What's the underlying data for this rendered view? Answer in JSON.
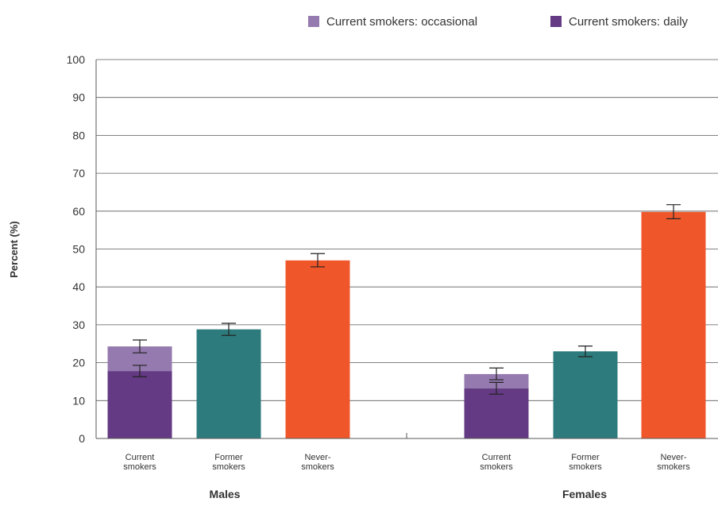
{
  "chart_data": {
    "type": "bar",
    "stacked": true,
    "ylabel": "Percent (%)",
    "ylim": [
      0,
      100
    ],
    "yticks": [
      0,
      10,
      20,
      30,
      40,
      50,
      60,
      70,
      80,
      90,
      100
    ],
    "grid": true,
    "legend_position": "top-right",
    "legend": [
      {
        "label": "Current smokers: occasional",
        "color": "#957aaf"
      },
      {
        "label": "Current smokers: daily",
        "color": "#633a83"
      }
    ],
    "groups": [
      {
        "name": "Males",
        "bars": [
          {
            "label_lines": [
              "Current",
              "smokers"
            ],
            "segments": [
              {
                "series": "daily",
                "value": 17.8,
                "color": "#633a83",
                "error": [
                  16.3,
                  19.3
                ]
              },
              {
                "series": "occasional",
                "value": 6.5,
                "color": "#957aaf",
                "error": [
                  22.6,
                  26.0
                ]
              }
            ]
          },
          {
            "label_lines": [
              "Former",
              "smokers"
            ],
            "segments": [
              {
                "series": "former",
                "value": 28.8,
                "color": "#2e7b7e",
                "error": [
                  27.2,
                  30.4
                ]
              }
            ]
          },
          {
            "label_lines": [
              "Never-",
              "smokers"
            ],
            "segments": [
              {
                "series": "never",
                "value": 47.0,
                "color": "#ef572b",
                "error": [
                  45.3,
                  48.8
                ]
              }
            ]
          }
        ]
      },
      {
        "name": "Females",
        "bars": [
          {
            "label_lines": [
              "Current",
              "smokers"
            ],
            "segments": [
              {
                "series": "daily",
                "value": 13.2,
                "color": "#633a83",
                "error": [
                  11.7,
                  14.8
                ]
              },
              {
                "series": "occasional",
                "value": 3.8,
                "color": "#957aaf",
                "error": [
                  15.5,
                  18.6
                ]
              }
            ]
          },
          {
            "label_lines": [
              "Former",
              "smokers"
            ],
            "segments": [
              {
                "series": "former",
                "value": 23.0,
                "color": "#2e7b7e",
                "error": [
                  21.6,
                  24.4
                ]
              }
            ]
          },
          {
            "label_lines": [
              "Never-",
              "smokers"
            ],
            "segments": [
              {
                "series": "never",
                "value": 59.8,
                "color": "#ef572b",
                "error": [
                  58.0,
                  61.7
                ]
              }
            ]
          }
        ]
      }
    ]
  }
}
